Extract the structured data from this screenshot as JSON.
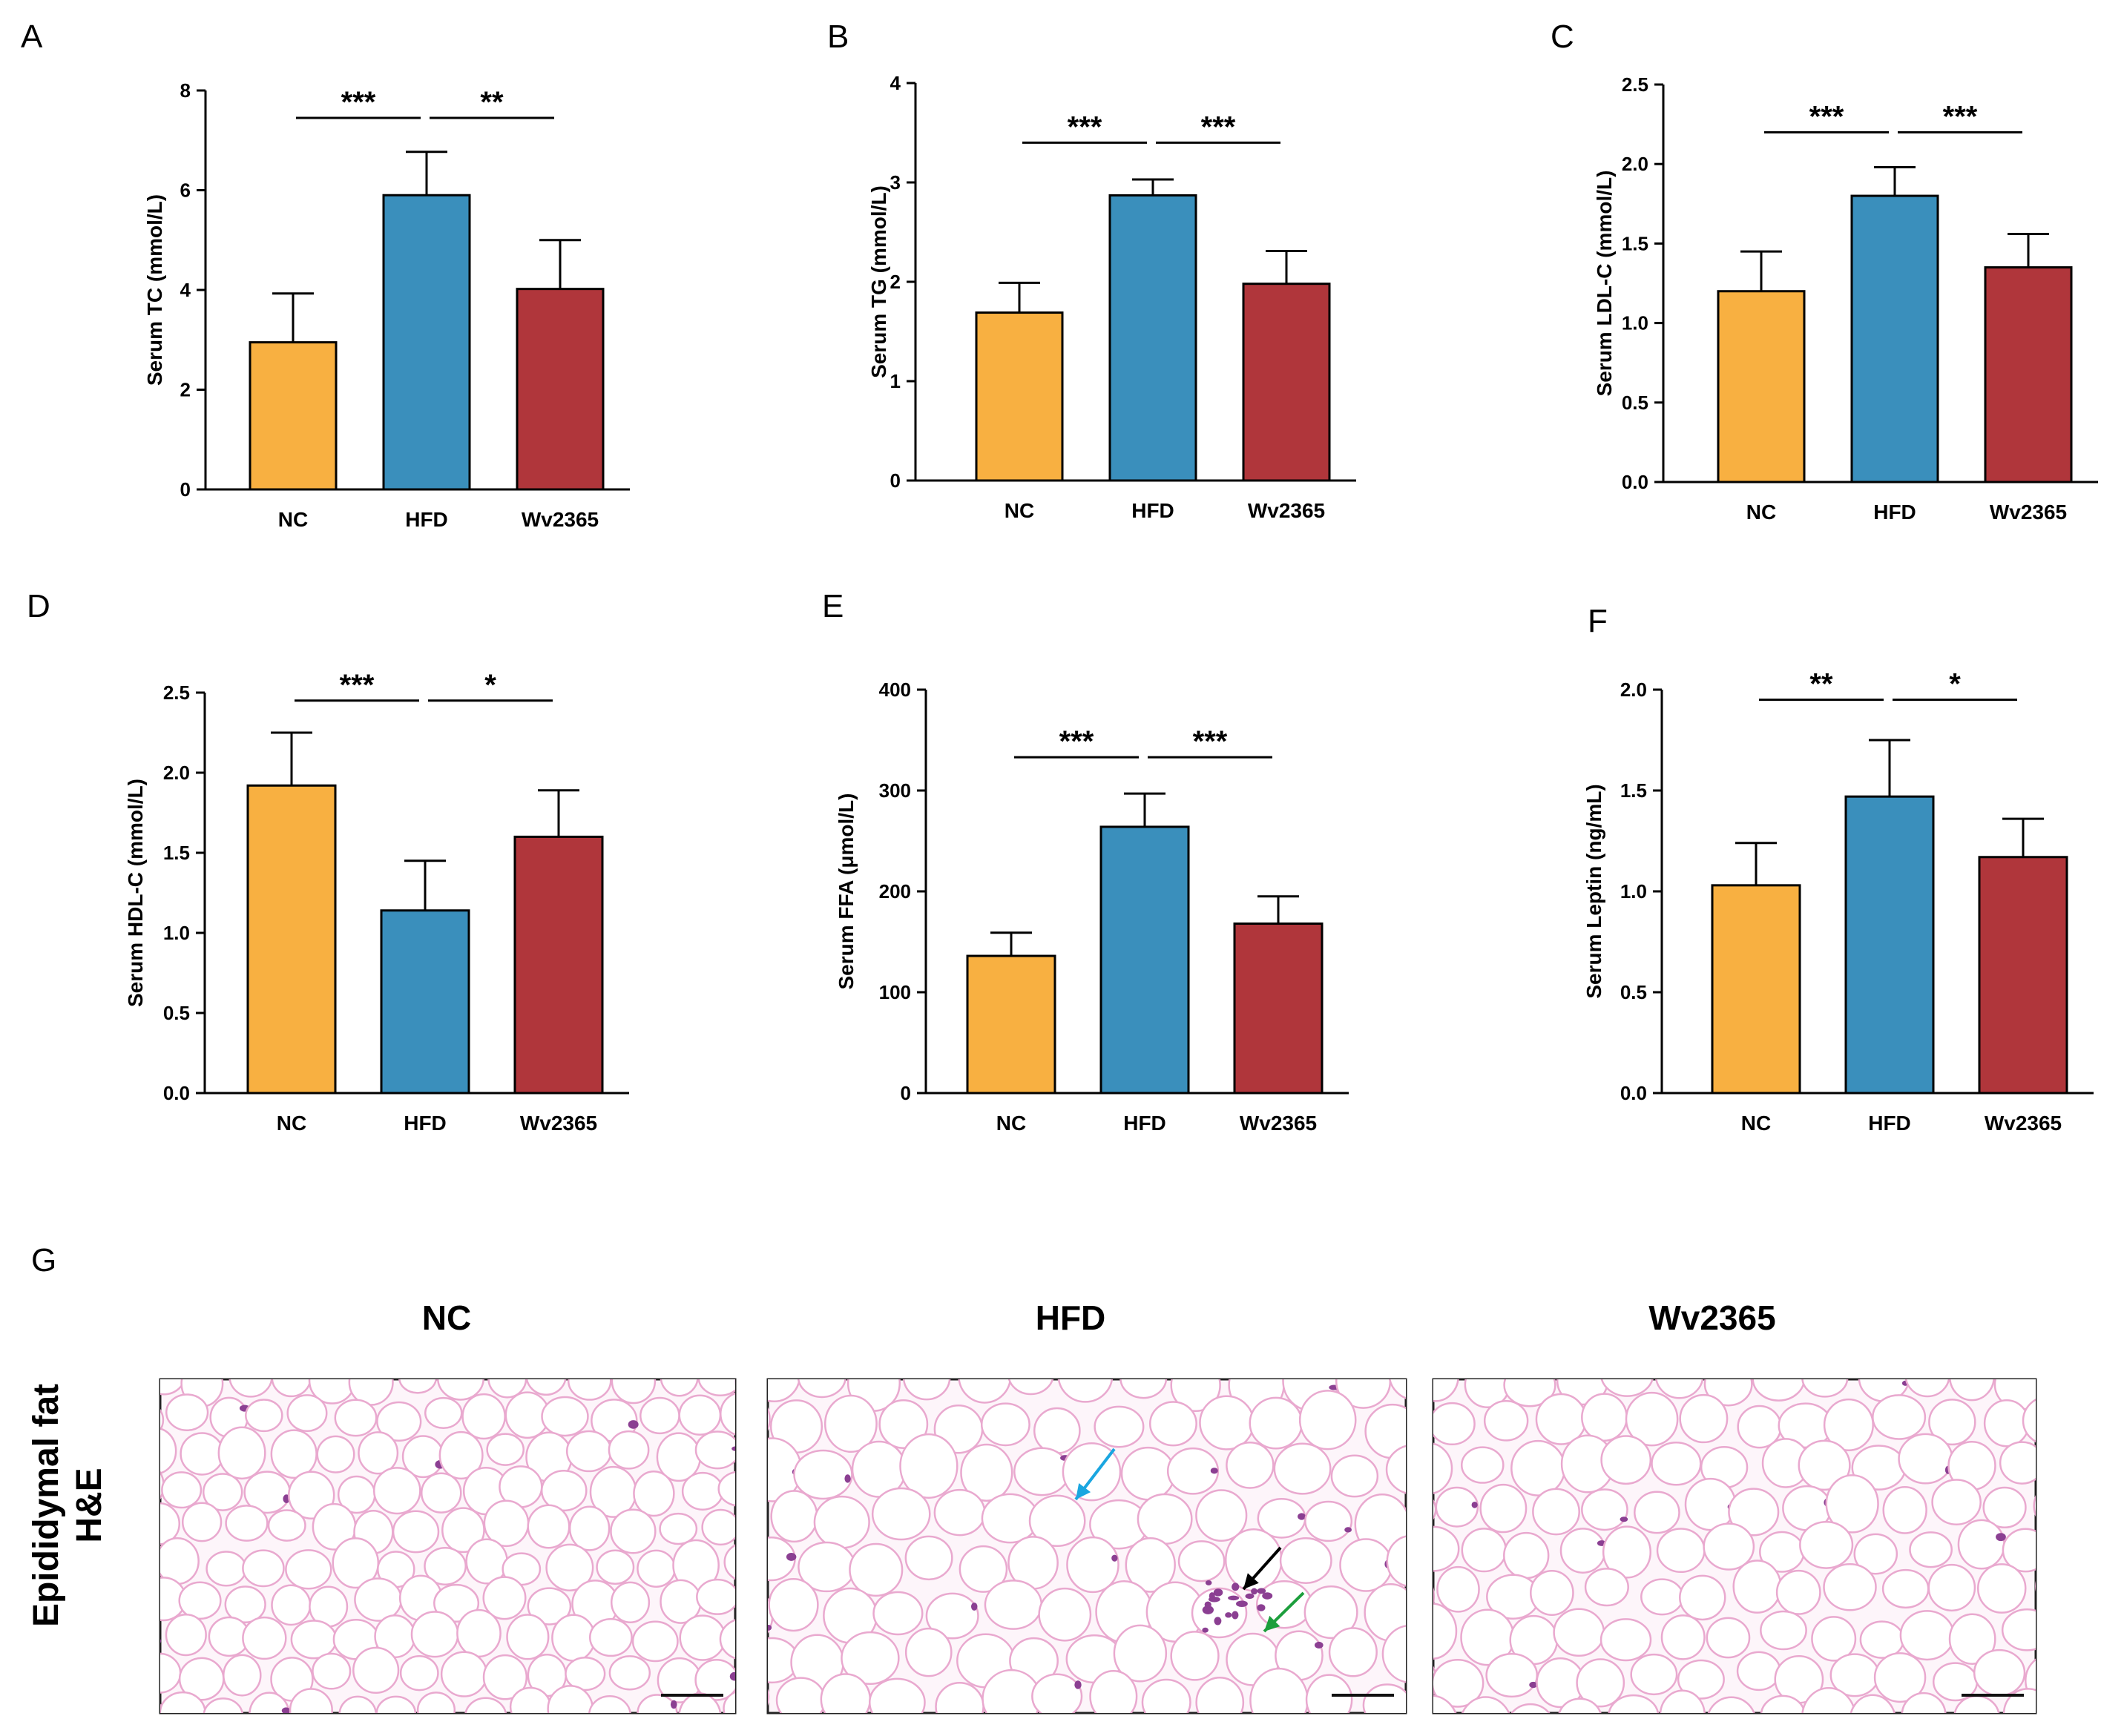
{
  "chart_data": [
    {
      "type": "bar",
      "panel": "A",
      "categories": [
        "NC",
        "HFD",
        "Wv2365"
      ],
      "values": [
        2.95,
        5.9,
        4.02
      ],
      "errors": [
        0.98,
        0.87,
        0.98
      ],
      "ylabel": "Serum TC (mmol/L)",
      "ylim": [
        0,
        8
      ],
      "yticks": [
        "0",
        "2",
        "4",
        "6",
        "8"
      ],
      "yticks_values": [
        0,
        2,
        4,
        6,
        8
      ],
      "significance": [
        {
          "from": 0,
          "to": 1,
          "label": "***",
          "at": 7.45
        },
        {
          "from": 1,
          "to": 2,
          "label": "**",
          "at": 7.45
        }
      ]
    },
    {
      "type": "bar",
      "panel": "B",
      "categories": [
        "NC",
        "HFD",
        "Wv2365"
      ],
      "values": [
        1.69,
        2.87,
        1.98
      ],
      "errors": [
        0.3,
        0.16,
        0.33
      ],
      "ylabel": "Serum TG (mmol/L)",
      "ylim": [
        0,
        4
      ],
      "yticks": [
        "0",
        "1",
        "2",
        "3",
        "4"
      ],
      "yticks_values": [
        0,
        1,
        2,
        3,
        4
      ],
      "significance": [
        {
          "from": 0,
          "to": 1,
          "label": "***",
          "at": 3.4
        },
        {
          "from": 1,
          "to": 2,
          "label": "***",
          "at": 3.4
        }
      ]
    },
    {
      "type": "bar",
      "panel": "C",
      "categories": [
        "NC",
        "HFD",
        "Wv2365"
      ],
      "values": [
        1.2,
        1.8,
        1.35
      ],
      "errors": [
        0.25,
        0.18,
        0.21
      ],
      "ylabel": "Serum LDL-C (mmol/L)",
      "ylim": [
        0,
        2.5
      ],
      "yticks": [
        "0.0",
        "0.5",
        "1.0",
        "1.5",
        "2.0",
        "2.5"
      ],
      "yticks_values": [
        0,
        0.5,
        1.0,
        1.5,
        2.0,
        2.5
      ],
      "significance": [
        {
          "from": 0,
          "to": 1,
          "label": "***",
          "at": 2.2
        },
        {
          "from": 1,
          "to": 2,
          "label": "***",
          "at": 2.2
        }
      ]
    },
    {
      "type": "bar",
      "panel": "D",
      "categories": [
        "NC",
        "HFD",
        "Wv2365"
      ],
      "values": [
        1.92,
        1.14,
        1.6
      ],
      "errors": [
        0.33,
        0.31,
        0.29
      ],
      "ylabel": "Serum HDL-C (mmol/L)",
      "ylim": [
        0,
        2.5
      ],
      "yticks": [
        "0.0",
        "0.5",
        "1.0",
        "1.5",
        "2.0",
        "2.5"
      ],
      "yticks_values": [
        0,
        0.5,
        1.0,
        1.5,
        2.0,
        2.5
      ],
      "significance": [
        {
          "from": 0,
          "to": 1,
          "label": "***",
          "at": 2.45
        },
        {
          "from": 1,
          "to": 2,
          "label": "*",
          "at": 2.45
        }
      ]
    },
    {
      "type": "bar",
      "panel": "E",
      "categories": [
        "NC",
        "HFD",
        "Wv2365"
      ],
      "values": [
        136,
        264,
        168
      ],
      "errors": [
        23,
        33,
        27
      ],
      "ylabel": "Serum FFA (μmol/L)",
      "ylim": [
        0,
        400
      ],
      "yticks": [
        "0",
        "100",
        "200",
        "300",
        "400"
      ],
      "yticks_values": [
        0,
        100,
        200,
        300,
        400
      ],
      "significance": [
        {
          "from": 0,
          "to": 1,
          "label": "***",
          "at": 333
        },
        {
          "from": 1,
          "to": 2,
          "label": "***",
          "at": 333
        }
      ]
    },
    {
      "type": "bar",
      "panel": "F",
      "categories": [
        "NC",
        "HFD",
        "Wv2365"
      ],
      "values": [
        1.03,
        1.47,
        1.17
      ],
      "errors": [
        0.21,
        0.28,
        0.19
      ],
      "ylabel": "Serum Leptin (ng/mL)",
      "ylim": [
        0,
        2.0
      ],
      "yticks": [
        "0.0",
        "0.5",
        "1.0",
        "1.5",
        "2.0"
      ],
      "yticks_values": [
        0,
        0.5,
        1.0,
        1.5,
        2.0
      ],
      "significance": [
        {
          "from": 0,
          "to": 1,
          "label": "**",
          "at": 1.95
        },
        {
          "from": 1,
          "to": 2,
          "label": "*",
          "at": 1.95
        }
      ]
    }
  ],
  "colors": {
    "NC": "#f8b041",
    "HFD": "#3a8fbc",
    "Wv2365": "#b0363b",
    "arrow_blue": "#1aa6e0",
    "arrow_black": "#000000",
    "arrow_green": "#1c9e3c"
  },
  "panel_g": {
    "letter": "G",
    "row_label_line1": "Epididymal fat",
    "row_label_line2": "H&E",
    "columns": [
      "NC",
      "HFD",
      "Wv2365"
    ]
  }
}
